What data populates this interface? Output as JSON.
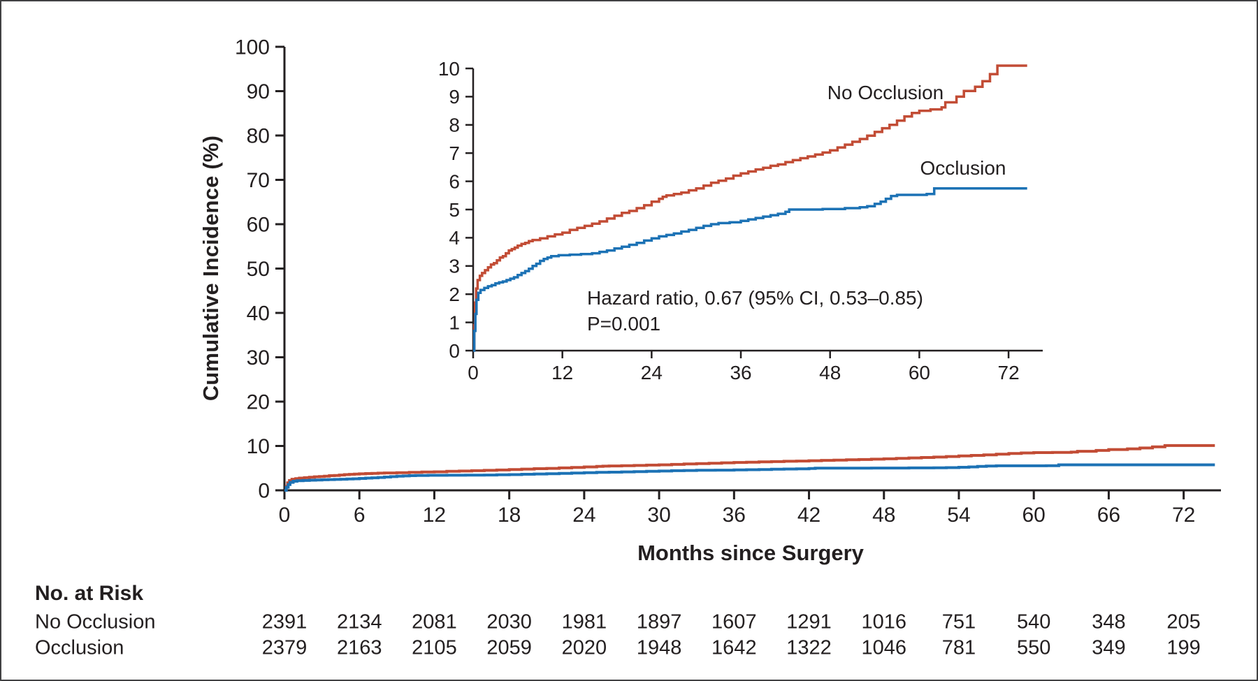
{
  "colors": {
    "no_occlusion": "#c24c35",
    "occlusion": "#1c72b5",
    "axis": "#231f20"
  },
  "chart_data": {
    "type": "line",
    "title": "",
    "xlabel": "Months since Surgery",
    "ylabel": "Cumulative Incidence (%)",
    "grid": false,
    "annotations": [
      "Hazard ratio, 0.67 (95% CI, 0.53–0.85)",
      "P=0.001"
    ],
    "series": [
      {
        "name": "No Occlusion",
        "color": "#c24c35",
        "points": [
          [
            0,
            0
          ],
          [
            0.15,
            0.9
          ],
          [
            0.25,
            1.7
          ],
          [
            0.4,
            2.2
          ],
          [
            0.6,
            2.5
          ],
          [
            0.9,
            2.65
          ],
          [
            1.2,
            2.75
          ],
          [
            1.6,
            2.85
          ],
          [
            2,
            2.95
          ],
          [
            2.4,
            3.05
          ],
          [
            2.8,
            3.1
          ],
          [
            3.2,
            3.2
          ],
          [
            3.6,
            3.3
          ],
          [
            4,
            3.35
          ],
          [
            4.4,
            3.45
          ],
          [
            4.8,
            3.55
          ],
          [
            5.2,
            3.6
          ],
          [
            5.6,
            3.65
          ],
          [
            6,
            3.72
          ],
          [
            6.5,
            3.78
          ],
          [
            7,
            3.82
          ],
          [
            7.5,
            3.88
          ],
          [
            8,
            3.92
          ],
          [
            9,
            3.98
          ],
          [
            10,
            4.05
          ],
          [
            11,
            4.12
          ],
          [
            12,
            4.18
          ],
          [
            13,
            4.28
          ],
          [
            14,
            4.35
          ],
          [
            15,
            4.42
          ],
          [
            16,
            4.5
          ],
          [
            17,
            4.58
          ],
          [
            18,
            4.68
          ],
          [
            19,
            4.78
          ],
          [
            20,
            4.88
          ],
          [
            21,
            4.95
          ],
          [
            22,
            5.05
          ],
          [
            23,
            5.15
          ],
          [
            24,
            5.28
          ],
          [
            25,
            5.38
          ],
          [
            25.5,
            5.45
          ],
          [
            26,
            5.5
          ],
          [
            27,
            5.55
          ],
          [
            28,
            5.6
          ],
          [
            29,
            5.68
          ],
          [
            30,
            5.75
          ],
          [
            31,
            5.85
          ],
          [
            32,
            5.95
          ],
          [
            33,
            6.02
          ],
          [
            34,
            6.1
          ],
          [
            35,
            6.2
          ],
          [
            36,
            6.28
          ],
          [
            37,
            6.35
          ],
          [
            38,
            6.42
          ],
          [
            39,
            6.48
          ],
          [
            40,
            6.55
          ],
          [
            41,
            6.6
          ],
          [
            42,
            6.68
          ],
          [
            43,
            6.75
          ],
          [
            44,
            6.82
          ],
          [
            45,
            6.88
          ],
          [
            46,
            6.95
          ],
          [
            47,
            7.02
          ],
          [
            48,
            7.1
          ],
          [
            49,
            7.2
          ],
          [
            50,
            7.3
          ],
          [
            51,
            7.4
          ],
          [
            52,
            7.5
          ],
          [
            53,
            7.62
          ],
          [
            54,
            7.75
          ],
          [
            55,
            7.88
          ],
          [
            56,
            8.0
          ],
          [
            57,
            8.15
          ],
          [
            58,
            8.3
          ],
          [
            59,
            8.42
          ],
          [
            60,
            8.5
          ],
          [
            61.5,
            8.55
          ],
          [
            63,
            8.62
          ],
          [
            63.5,
            8.8
          ],
          [
            65,
            9.0
          ],
          [
            66,
            9.2
          ],
          [
            67.5,
            9.35
          ],
          [
            68.5,
            9.55
          ],
          [
            69.5,
            9.8
          ],
          [
            70.5,
            10.1
          ],
          [
            74.5,
            10.1
          ]
        ]
      },
      {
        "name": "Occlusion",
        "color": "#1c72b5",
        "points": [
          [
            0,
            0
          ],
          [
            0.15,
            0.7
          ],
          [
            0.3,
            1.3
          ],
          [
            0.45,
            1.8
          ],
          [
            0.7,
            2.05
          ],
          [
            1,
            2.15
          ],
          [
            1.5,
            2.22
          ],
          [
            2,
            2.28
          ],
          [
            2.5,
            2.32
          ],
          [
            3,
            2.38
          ],
          [
            3.5,
            2.42
          ],
          [
            4,
            2.45
          ],
          [
            4.5,
            2.5
          ],
          [
            5,
            2.55
          ],
          [
            5.5,
            2.6
          ],
          [
            6,
            2.68
          ],
          [
            6.5,
            2.75
          ],
          [
            7,
            2.82
          ],
          [
            7.5,
            2.9
          ],
          [
            8,
            3.0
          ],
          [
            8.5,
            3.08
          ],
          [
            9,
            3.18
          ],
          [
            9.5,
            3.25
          ],
          [
            10,
            3.3
          ],
          [
            10.5,
            3.35
          ],
          [
            11.5,
            3.38
          ],
          [
            13,
            3.4
          ],
          [
            14.5,
            3.42
          ],
          [
            16,
            3.45
          ],
          [
            17,
            3.5
          ],
          [
            18,
            3.55
          ],
          [
            19,
            3.62
          ],
          [
            20,
            3.68
          ],
          [
            21,
            3.75
          ],
          [
            22,
            3.82
          ],
          [
            23,
            3.9
          ],
          [
            24,
            3.98
          ],
          [
            25,
            4.05
          ],
          [
            26,
            4.1
          ],
          [
            27,
            4.15
          ],
          [
            28,
            4.22
          ],
          [
            29,
            4.28
          ],
          [
            30,
            4.35
          ],
          [
            31,
            4.42
          ],
          [
            32,
            4.48
          ],
          [
            33,
            4.52
          ],
          [
            34.5,
            4.55
          ],
          [
            36,
            4.6
          ],
          [
            37,
            4.65
          ],
          [
            38,
            4.7
          ],
          [
            39,
            4.75
          ],
          [
            40,
            4.8
          ],
          [
            41,
            4.85
          ],
          [
            42,
            4.92
          ],
          [
            42.5,
            5.0
          ],
          [
            47,
            5.02
          ],
          [
            50,
            5.05
          ],
          [
            52,
            5.08
          ],
          [
            53,
            5.12
          ],
          [
            54,
            5.2
          ],
          [
            54.8,
            5.28
          ],
          [
            55.5,
            5.38
          ],
          [
            56.2,
            5.48
          ],
          [
            57,
            5.52
          ],
          [
            61,
            5.55
          ],
          [
            62,
            5.75
          ],
          [
            74.5,
            5.75
          ]
        ]
      }
    ],
    "views": [
      {
        "id": "main",
        "xlim": [
          0,
          75
        ],
        "ylim": [
          0,
          100
        ],
        "x_ticks": [
          0,
          6,
          12,
          18,
          24,
          30,
          36,
          42,
          48,
          54,
          60,
          66,
          72
        ],
        "y_ticks": [
          0,
          10,
          20,
          30,
          40,
          50,
          60,
          70,
          80,
          90,
          100
        ]
      },
      {
        "id": "inset",
        "xlim": [
          0,
          75
        ],
        "ylim": [
          0,
          10
        ],
        "x_ticks": [
          0,
          12,
          24,
          36,
          48,
          60,
          72
        ],
        "y_ticks": [
          0,
          1,
          2,
          3,
          4,
          5,
          6,
          7,
          8,
          9,
          10
        ]
      }
    ]
  },
  "risk_table": {
    "title": "No. at Risk",
    "columns": [
      0,
      6,
      12,
      18,
      24,
      30,
      36,
      42,
      48,
      54,
      60,
      66,
      72
    ],
    "rows": [
      {
        "label": "No Occlusion",
        "values": [
          "2391",
          "2134",
          "2081",
          "2030",
          "1981",
          "1897",
          "1607",
          "1291",
          "1016",
          "751",
          "540",
          "348",
          "205"
        ]
      },
      {
        "label": "Occlusion",
        "values": [
          "2379",
          "2163",
          "2105",
          "2059",
          "2020",
          "1948",
          "1642",
          "1322",
          "1046",
          "781",
          "550",
          "349",
          "199"
        ]
      }
    ]
  }
}
